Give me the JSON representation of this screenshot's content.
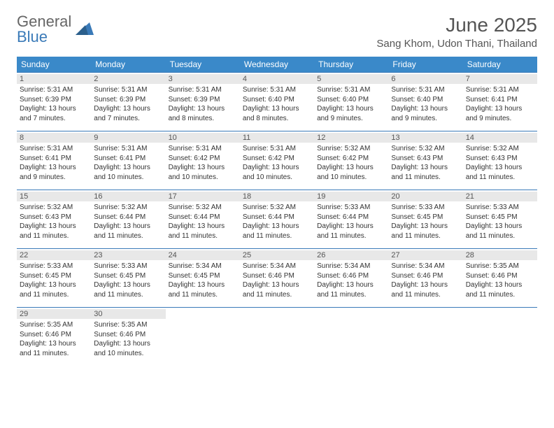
{
  "brand": {
    "part1": "General",
    "part2": "Blue"
  },
  "title": "June 2025",
  "location": "Sang Khom, Udon Thani, Thailand",
  "colors": {
    "header_bg": "#3a89c9",
    "header_text": "#ffffff",
    "border": "#3a7ab8",
    "daynum_bg": "#e8e8e8",
    "text": "#333333",
    "brand_gray": "#666666",
    "brand_blue": "#3a7ab8"
  },
  "weekdays": [
    "Sunday",
    "Monday",
    "Tuesday",
    "Wednesday",
    "Thursday",
    "Friday",
    "Saturday"
  ],
  "weeks": [
    [
      {
        "n": "1",
        "sr": "Sunrise: 5:31 AM",
        "ss": "Sunset: 6:39 PM",
        "d1": "Daylight: 13 hours",
        "d2": "and 7 minutes."
      },
      {
        "n": "2",
        "sr": "Sunrise: 5:31 AM",
        "ss": "Sunset: 6:39 PM",
        "d1": "Daylight: 13 hours",
        "d2": "and 7 minutes."
      },
      {
        "n": "3",
        "sr": "Sunrise: 5:31 AM",
        "ss": "Sunset: 6:39 PM",
        "d1": "Daylight: 13 hours",
        "d2": "and 8 minutes."
      },
      {
        "n": "4",
        "sr": "Sunrise: 5:31 AM",
        "ss": "Sunset: 6:40 PM",
        "d1": "Daylight: 13 hours",
        "d2": "and 8 minutes."
      },
      {
        "n": "5",
        "sr": "Sunrise: 5:31 AM",
        "ss": "Sunset: 6:40 PM",
        "d1": "Daylight: 13 hours",
        "d2": "and 9 minutes."
      },
      {
        "n": "6",
        "sr": "Sunrise: 5:31 AM",
        "ss": "Sunset: 6:40 PM",
        "d1": "Daylight: 13 hours",
        "d2": "and 9 minutes."
      },
      {
        "n": "7",
        "sr": "Sunrise: 5:31 AM",
        "ss": "Sunset: 6:41 PM",
        "d1": "Daylight: 13 hours",
        "d2": "and 9 minutes."
      }
    ],
    [
      {
        "n": "8",
        "sr": "Sunrise: 5:31 AM",
        "ss": "Sunset: 6:41 PM",
        "d1": "Daylight: 13 hours",
        "d2": "and 9 minutes."
      },
      {
        "n": "9",
        "sr": "Sunrise: 5:31 AM",
        "ss": "Sunset: 6:41 PM",
        "d1": "Daylight: 13 hours",
        "d2": "and 10 minutes."
      },
      {
        "n": "10",
        "sr": "Sunrise: 5:31 AM",
        "ss": "Sunset: 6:42 PM",
        "d1": "Daylight: 13 hours",
        "d2": "and 10 minutes."
      },
      {
        "n": "11",
        "sr": "Sunrise: 5:31 AM",
        "ss": "Sunset: 6:42 PM",
        "d1": "Daylight: 13 hours",
        "d2": "and 10 minutes."
      },
      {
        "n": "12",
        "sr": "Sunrise: 5:32 AM",
        "ss": "Sunset: 6:42 PM",
        "d1": "Daylight: 13 hours",
        "d2": "and 10 minutes."
      },
      {
        "n": "13",
        "sr": "Sunrise: 5:32 AM",
        "ss": "Sunset: 6:43 PM",
        "d1": "Daylight: 13 hours",
        "d2": "and 11 minutes."
      },
      {
        "n": "14",
        "sr": "Sunrise: 5:32 AM",
        "ss": "Sunset: 6:43 PM",
        "d1": "Daylight: 13 hours",
        "d2": "and 11 minutes."
      }
    ],
    [
      {
        "n": "15",
        "sr": "Sunrise: 5:32 AM",
        "ss": "Sunset: 6:43 PM",
        "d1": "Daylight: 13 hours",
        "d2": "and 11 minutes."
      },
      {
        "n": "16",
        "sr": "Sunrise: 5:32 AM",
        "ss": "Sunset: 6:44 PM",
        "d1": "Daylight: 13 hours",
        "d2": "and 11 minutes."
      },
      {
        "n": "17",
        "sr": "Sunrise: 5:32 AM",
        "ss": "Sunset: 6:44 PM",
        "d1": "Daylight: 13 hours",
        "d2": "and 11 minutes."
      },
      {
        "n": "18",
        "sr": "Sunrise: 5:32 AM",
        "ss": "Sunset: 6:44 PM",
        "d1": "Daylight: 13 hours",
        "d2": "and 11 minutes."
      },
      {
        "n": "19",
        "sr": "Sunrise: 5:33 AM",
        "ss": "Sunset: 6:44 PM",
        "d1": "Daylight: 13 hours",
        "d2": "and 11 minutes."
      },
      {
        "n": "20",
        "sr": "Sunrise: 5:33 AM",
        "ss": "Sunset: 6:45 PM",
        "d1": "Daylight: 13 hours",
        "d2": "and 11 minutes."
      },
      {
        "n": "21",
        "sr": "Sunrise: 5:33 AM",
        "ss": "Sunset: 6:45 PM",
        "d1": "Daylight: 13 hours",
        "d2": "and 11 minutes."
      }
    ],
    [
      {
        "n": "22",
        "sr": "Sunrise: 5:33 AM",
        "ss": "Sunset: 6:45 PM",
        "d1": "Daylight: 13 hours",
        "d2": "and 11 minutes."
      },
      {
        "n": "23",
        "sr": "Sunrise: 5:33 AM",
        "ss": "Sunset: 6:45 PM",
        "d1": "Daylight: 13 hours",
        "d2": "and 11 minutes."
      },
      {
        "n": "24",
        "sr": "Sunrise: 5:34 AM",
        "ss": "Sunset: 6:45 PM",
        "d1": "Daylight: 13 hours",
        "d2": "and 11 minutes."
      },
      {
        "n": "25",
        "sr": "Sunrise: 5:34 AM",
        "ss": "Sunset: 6:46 PM",
        "d1": "Daylight: 13 hours",
        "d2": "and 11 minutes."
      },
      {
        "n": "26",
        "sr": "Sunrise: 5:34 AM",
        "ss": "Sunset: 6:46 PM",
        "d1": "Daylight: 13 hours",
        "d2": "and 11 minutes."
      },
      {
        "n": "27",
        "sr": "Sunrise: 5:34 AM",
        "ss": "Sunset: 6:46 PM",
        "d1": "Daylight: 13 hours",
        "d2": "and 11 minutes."
      },
      {
        "n": "28",
        "sr": "Sunrise: 5:35 AM",
        "ss": "Sunset: 6:46 PM",
        "d1": "Daylight: 13 hours",
        "d2": "and 11 minutes."
      }
    ],
    [
      {
        "n": "29",
        "sr": "Sunrise: 5:35 AM",
        "ss": "Sunset: 6:46 PM",
        "d1": "Daylight: 13 hours",
        "d2": "and 11 minutes."
      },
      {
        "n": "30",
        "sr": "Sunrise: 5:35 AM",
        "ss": "Sunset: 6:46 PM",
        "d1": "Daylight: 13 hours",
        "d2": "and 10 minutes."
      },
      null,
      null,
      null,
      null,
      null
    ]
  ]
}
